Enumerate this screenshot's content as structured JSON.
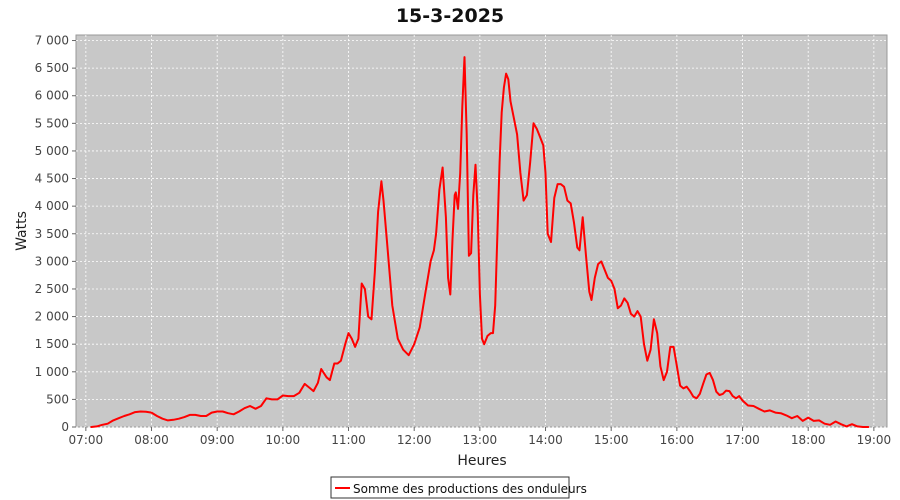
{
  "chart_data": {
    "type": "line",
    "title": "15-3-2025",
    "xlabel": "Heures",
    "ylabel": "Watts",
    "x_ticks": [
      "07:00",
      "08:00",
      "09:00",
      "10:00",
      "11:00",
      "12:00",
      "13:00",
      "14:00",
      "15:00",
      "16:00",
      "17:00",
      "18:00",
      "19:00"
    ],
    "y_ticks": [
      "0",
      "500",
      "1 000",
      "1 500",
      "2 000",
      "2 500",
      "3 000",
      "3 500",
      "4 000",
      "4 500",
      "5 000",
      "5 500",
      "6 000",
      "6 500",
      "7 000"
    ],
    "xlim": [
      "06:51",
      "19:12"
    ],
    "ylim": [
      0,
      7100
    ],
    "grid": true,
    "legend_position": "bottom-center",
    "series": [
      {
        "name": "Somme des productions des onduleurs",
        "color": "#ff0000",
        "points": [
          [
            "07:05",
            0
          ],
          [
            "07:10",
            10
          ],
          [
            "07:15",
            40
          ],
          [
            "07:20",
            60
          ],
          [
            "07:25",
            120
          ],
          [
            "07:30",
            160
          ],
          [
            "07:35",
            200
          ],
          [
            "07:40",
            230
          ],
          [
            "07:45",
            270
          ],
          [
            "07:50",
            280
          ],
          [
            "07:55",
            275
          ],
          [
            "08:00",
            260
          ],
          [
            "08:05",
            200
          ],
          [
            "08:10",
            150
          ],
          [
            "08:15",
            120
          ],
          [
            "08:20",
            130
          ],
          [
            "08:25",
            150
          ],
          [
            "08:30",
            180
          ],
          [
            "08:35",
            220
          ],
          [
            "08:40",
            220
          ],
          [
            "08:45",
            200
          ],
          [
            "08:50",
            200
          ],
          [
            "08:55",
            260
          ],
          [
            "09:00",
            280
          ],
          [
            "09:05",
            280
          ],
          [
            "09:10",
            250
          ],
          [
            "09:15",
            230
          ],
          [
            "09:20",
            280
          ],
          [
            "09:25",
            340
          ],
          [
            "09:30",
            380
          ],
          [
            "09:35",
            330
          ],
          [
            "09:40",
            380
          ],
          [
            "09:45",
            520
          ],
          [
            "09:50",
            500
          ],
          [
            "09:55",
            500
          ],
          [
            "10:00",
            570
          ],
          [
            "10:05",
            560
          ],
          [
            "10:10",
            560
          ],
          [
            "10:15",
            620
          ],
          [
            "10:20",
            780
          ],
          [
            "10:25",
            700
          ],
          [
            "10:28",
            650
          ],
          [
            "10:32",
            800
          ],
          [
            "10:35",
            1050
          ],
          [
            "10:40",
            900
          ],
          [
            "10:43",
            850
          ],
          [
            "10:47",
            1150
          ],
          [
            "10:50",
            1150
          ],
          [
            "10:53",
            1200
          ],
          [
            "10:57",
            1500
          ],
          [
            "11:00",
            1700
          ],
          [
            "11:03",
            1600
          ],
          [
            "11:06",
            1450
          ],
          [
            "11:09",
            1600
          ],
          [
            "11:12",
            2600
          ],
          [
            "11:15",
            2500
          ],
          [
            "11:18",
            2000
          ],
          [
            "11:21",
            1950
          ],
          [
            "11:24",
            2800
          ],
          [
            "11:27",
            3900
          ],
          [
            "11:30",
            4450
          ],
          [
            "11:32",
            4100
          ],
          [
            "11:35",
            3400
          ],
          [
            "11:40",
            2200
          ],
          [
            "11:45",
            1600
          ],
          [
            "11:50",
            1400
          ],
          [
            "11:55",
            1300
          ],
          [
            "12:00",
            1500
          ],
          [
            "12:05",
            1800
          ],
          [
            "12:10",
            2400
          ],
          [
            "12:15",
            3000
          ],
          [
            "12:18",
            3200
          ],
          [
            "12:20",
            3500
          ],
          [
            "12:23",
            4300
          ],
          [
            "12:26",
            4700
          ],
          [
            "12:29",
            3800
          ],
          [
            "12:31",
            2700
          ],
          [
            "12:33",
            2400
          ],
          [
            "12:35",
            3400
          ],
          [
            "12:37",
            4200
          ],
          [
            "12:38",
            4250
          ],
          [
            "12:40",
            3950
          ],
          [
            "12:42",
            4600
          ],
          [
            "12:44",
            5800
          ],
          [
            "12:46",
            6700
          ],
          [
            "12:48",
            5300
          ],
          [
            "12:50",
            3100
          ],
          [
            "12:52",
            3150
          ],
          [
            "12:54",
            4200
          ],
          [
            "12:56",
            4750
          ],
          [
            "12:58",
            3900
          ],
          [
            "13:00",
            2400
          ],
          [
            "13:02",
            1600
          ],
          [
            "13:04",
            1500
          ],
          [
            "13:07",
            1650
          ],
          [
            "13:10",
            1700
          ],
          [
            "13:12",
            1700
          ],
          [
            "13:14",
            2200
          ],
          [
            "13:16",
            3500
          ],
          [
            "13:18",
            4800
          ],
          [
            "13:20",
            5700
          ],
          [
            "13:22",
            6150
          ],
          [
            "13:24",
            6400
          ],
          [
            "13:26",
            6300
          ],
          [
            "13:28",
            5900
          ],
          [
            "13:31",
            5600
          ],
          [
            "13:34",
            5300
          ],
          [
            "13:37",
            4600
          ],
          [
            "13:40",
            4100
          ],
          [
            "13:43",
            4200
          ],
          [
            "13:46",
            4800
          ],
          [
            "13:49",
            5500
          ],
          [
            "13:52",
            5400
          ],
          [
            "13:55",
            5250
          ],
          [
            "13:58",
            5100
          ],
          [
            "14:00",
            4600
          ],
          [
            "14:02",
            3500
          ],
          [
            "14:05",
            3350
          ],
          [
            "14:08",
            4150
          ],
          [
            "14:11",
            4400
          ],
          [
            "14:14",
            4400
          ],
          [
            "14:17",
            4350
          ],
          [
            "14:20",
            4100
          ],
          [
            "14:23",
            4050
          ],
          [
            "14:26",
            3700
          ],
          [
            "14:29",
            3250
          ],
          [
            "14:31",
            3200
          ],
          [
            "14:34",
            3800
          ],
          [
            "14:37",
            3100
          ],
          [
            "14:40",
            2450
          ],
          [
            "14:42",
            2300
          ],
          [
            "14:45",
            2700
          ],
          [
            "14:48",
            2950
          ],
          [
            "14:51",
            3000
          ],
          [
            "14:54",
            2850
          ],
          [
            "14:57",
            2700
          ],
          [
            "15:00",
            2650
          ],
          [
            "15:03",
            2500
          ],
          [
            "15:06",
            2150
          ],
          [
            "15:09",
            2200
          ],
          [
            "15:12",
            2330
          ],
          [
            "15:15",
            2250
          ],
          [
            "15:18",
            2050
          ],
          [
            "15:21",
            2000
          ],
          [
            "15:24",
            2100
          ],
          [
            "15:27",
            2000
          ],
          [
            "15:30",
            1500
          ],
          [
            "15:33",
            1200
          ],
          [
            "15:36",
            1400
          ],
          [
            "15:39",
            1950
          ],
          [
            "15:42",
            1700
          ],
          [
            "15:45",
            1100
          ],
          [
            "15:48",
            850
          ],
          [
            "15:51",
            1000
          ],
          [
            "15:54",
            1450
          ],
          [
            "15:57",
            1450
          ],
          [
            "16:00",
            1100
          ],
          [
            "16:03",
            750
          ],
          [
            "16:06",
            700
          ],
          [
            "16:09",
            730
          ],
          [
            "16:12",
            650
          ],
          [
            "16:15",
            550
          ],
          [
            "16:18",
            520
          ],
          [
            "16:21",
            600
          ],
          [
            "16:24",
            780
          ],
          [
            "16:27",
            950
          ],
          [
            "16:30",
            980
          ],
          [
            "16:33",
            850
          ],
          [
            "16:36",
            640
          ],
          [
            "16:39",
            580
          ],
          [
            "16:42",
            600
          ],
          [
            "16:45",
            660
          ],
          [
            "16:48",
            650
          ],
          [
            "16:51",
            560
          ],
          [
            "16:54",
            520
          ],
          [
            "16:57",
            560
          ],
          [
            "17:00",
            480
          ],
          [
            "17:05",
            390
          ],
          [
            "17:10",
            380
          ],
          [
            "17:15",
            330
          ],
          [
            "17:20",
            280
          ],
          [
            "17:25",
            300
          ],
          [
            "17:30",
            260
          ],
          [
            "17:35",
            250
          ],
          [
            "17:40",
            210
          ],
          [
            "17:45",
            160
          ],
          [
            "17:50",
            200
          ],
          [
            "17:55",
            110
          ],
          [
            "18:00",
            170
          ],
          [
            "18:05",
            110
          ],
          [
            "18:10",
            120
          ],
          [
            "18:15",
            60
          ],
          [
            "18:20",
            40
          ],
          [
            "18:25",
            100
          ],
          [
            "18:30",
            50
          ],
          [
            "18:35",
            10
          ],
          [
            "18:40",
            50
          ],
          [
            "18:45",
            10
          ],
          [
            "18:50",
            0
          ],
          [
            "18:55",
            0
          ]
        ]
      }
    ]
  }
}
